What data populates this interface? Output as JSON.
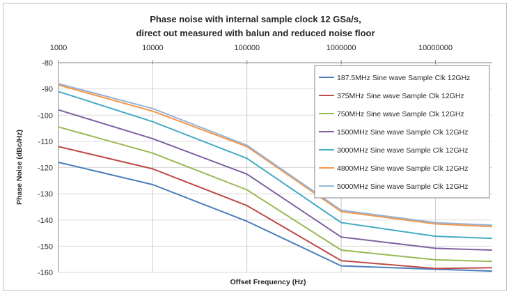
{
  "chart_data": {
    "type": "line",
    "title": [
      "Phase noise with internal sample clock 12 GSa/s,",
      "direct out measured with balun and reduced noise floor"
    ],
    "xlabel": "Offset Frequency (Hz)",
    "ylabel": "Phase Noise (dBc/Hz)",
    "x_scale": "log",
    "xlim": [
      1000,
      40000000
    ],
    "ylim": [
      -160,
      -80
    ],
    "x_ticks": [
      "1000",
      "10000",
      "100000",
      "1000000",
      "10000000"
    ],
    "x_tick_values": [
      1000,
      10000,
      100000,
      1000000,
      10000000
    ],
    "y_ticks": [
      "-80",
      "-90",
      "-100",
      "-110",
      "-120",
      "-130",
      "-140",
      "-150",
      "-160"
    ],
    "y_tick_values": [
      -80,
      -90,
      -100,
      -110,
      -120,
      -130,
      -140,
      -150,
      -160
    ],
    "x_axis_position": "top",
    "grid": "horizontal",
    "legend_position": "top-right",
    "x": [
      1000,
      10000,
      100000,
      1000000,
      10000000,
      40000000
    ],
    "series": [
      {
        "name": "187.5MHz Sine wave Sample Clk 12GHz",
        "color": "#4a7ebb",
        "values": [
          -118,
          -126.5,
          -140.5,
          -157.5,
          -158.8,
          -159.5
        ]
      },
      {
        "name": "375MHz Sine wave Sample Clk 12GHz",
        "color": "#be4b48",
        "values": [
          -112,
          -120.5,
          -134.5,
          -155.5,
          -158.5,
          -158.2
        ]
      },
      {
        "name": "750MHz Sine wave Sample Clk 12GHz",
        "color": "#98b954",
        "values": [
          -104.5,
          -114.5,
          -128.5,
          -151.5,
          -155.2,
          -155.8
        ]
      },
      {
        "name": "1500MHz Sine wave Sample Clk 12GHz",
        "color": "#7d60a0",
        "values": [
          -98,
          -109,
          -122.5,
          -146.5,
          -150.8,
          -151.5
        ]
      },
      {
        "name": "3000MHz Sine wave Sample Clk 12GHz",
        "color": "#46aac5",
        "values": [
          -91,
          -102.5,
          -116.5,
          -141,
          -146.2,
          -147
        ]
      },
      {
        "name": "4800MHz Sine wave Sample Clk 12GHz",
        "color": "#f79646",
        "values": [
          -88.5,
          -98.5,
          -112,
          -136.8,
          -141.5,
          -142.5
        ]
      },
      {
        "name": "5000MHz Sine wave Sample Clk 12GHz",
        "color": "#95b3d7",
        "values": [
          -88,
          -97.5,
          -111.5,
          -136.3,
          -141,
          -142
        ]
      }
    ]
  }
}
